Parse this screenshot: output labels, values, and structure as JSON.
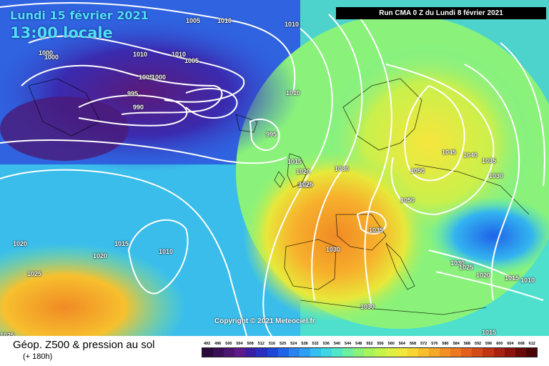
{
  "header": {
    "date_text": "Lundi 15 février 2021",
    "time_text": "13:00 locale",
    "run_text": "Run CMA 0 Z du Lundi 8 février 2021"
  },
  "copyright_text": "Copyright © 2021 Meteociel.fr",
  "footer": {
    "title": "Géop. Z500 & pression au sol",
    "subtitle": "(+ 180h)"
  },
  "isobar_labels": [
    "1005",
    "1010",
    "1010",
    "1000",
    "1000",
    "1010",
    "1010",
    "1005",
    "1005",
    "1000",
    "995",
    "990",
    "1010",
    "995",
    "1015",
    "1020",
    "1025",
    "1020",
    "1025",
    "1015",
    "1010",
    "1020",
    "1025",
    "1030",
    "1035",
    "1030",
    "1050",
    "1050",
    "1045",
    "1040",
    "1035",
    "1030",
    "1030",
    "1025",
    "1020",
    "1015",
    "1010",
    "1030",
    "1015",
    "1025"
  ],
  "colors": {
    "ocean_low": "#2f63e0",
    "deep_low": "#4a1a78",
    "high_ridge": "#f59a2a",
    "isobar": "#ffffff"
  },
  "legend": {
    "values": [
      "492",
      "496",
      "500",
      "504",
      "508",
      "512",
      "516",
      "520",
      "524",
      "528",
      "532",
      "536",
      "540",
      "544",
      "548",
      "552",
      "556",
      "560",
      "564",
      "568",
      "572",
      "576",
      "580",
      "584",
      "588",
      "592",
      "596",
      "600",
      "604",
      "608",
      "612"
    ],
    "colors": [
      "#2a0a3a",
      "#3a0f55",
      "#4c1570",
      "#5e1b8a",
      "#3a1fa5",
      "#2a2fc0",
      "#1e46d8",
      "#1f63e8",
      "#2a82f0",
      "#2ea0f2",
      "#33bff0",
      "#3fd6e4",
      "#52e6c8",
      "#6cefa0",
      "#8af27a",
      "#a8f45c",
      "#c4f44a",
      "#def042",
      "#f0e83a",
      "#f8d632",
      "#f9bf2c",
      "#f6a828",
      "#f29024",
      "#ec7820",
      "#e2601c",
      "#d44a18",
      "#c23414",
      "#a82210",
      "#8a140c",
      "#6a0a08",
      "#4a0404"
    ]
  }
}
